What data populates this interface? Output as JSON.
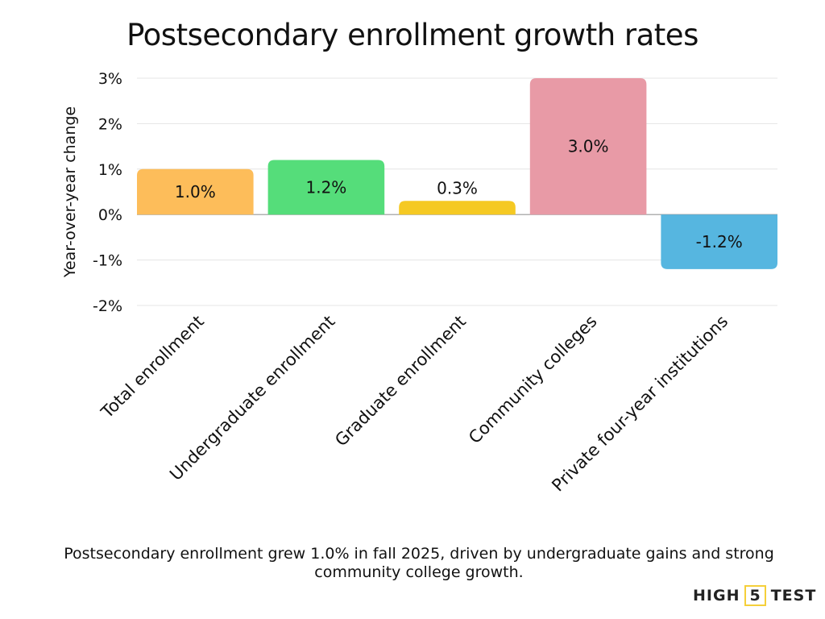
{
  "chart_data": {
    "type": "bar",
    "title": "Postsecondary enrollment growth rates",
    "ylabel": "Year-over-year change",
    "xlabel": "",
    "categories": [
      "Total enrollment",
      "Undergraduate enrollment",
      "Graduate enrollment",
      "Community colleges",
      "Private four-year institutions"
    ],
    "values": [
      1.0,
      1.2,
      0.3,
      3.0,
      -1.2
    ],
    "data_labels": [
      "1.0%",
      "1.2%",
      "0.3%",
      "3.0%",
      "-1.2%"
    ],
    "colors": [
      "#fdbd5a",
      "#55dd7a",
      "#f5c923",
      "#e89aa6",
      "#56b6e0"
    ],
    "ylim": [
      -2,
      3
    ],
    "yticks": [
      3,
      2,
      1,
      0,
      -1,
      -2
    ],
    "ytick_labels": [
      "3%",
      "2%",
      "1%",
      "0%",
      "-1%",
      "-2%"
    ],
    "grid": true
  },
  "caption": "Postsecondary enrollment grew 1.0% in fall 2025, driven by undergraduate gains and strong community college growth.",
  "logo": {
    "text_left": "HIGH",
    "text_mid": "5",
    "text_right": "TEST"
  }
}
